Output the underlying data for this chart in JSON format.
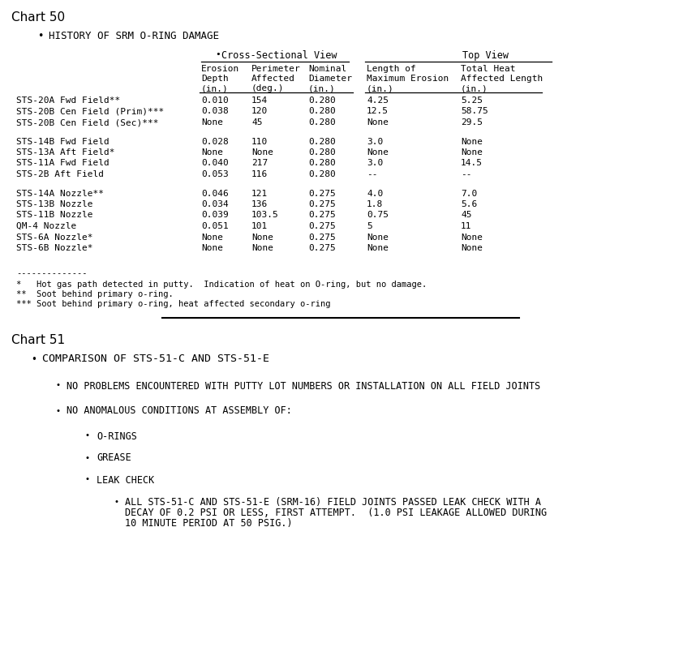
{
  "chart50_title": "Chart 50",
  "chart50_bullet": "HISTORY OF SRM O-RING DAMAGE",
  "cross_sect_label": "Cross-Sectional View",
  "top_view_label": "Top View",
  "group1": {
    "rows": [
      [
        "STS-20A Fwd Field**",
        "0.010",
        "154",
        "0.280",
        "4.25",
        "5.25"
      ],
      [
        "STS-20B Cen Field (Prim)***",
        "0.038",
        "120",
        "0.280",
        "12.5",
        "58.75"
      ],
      [
        "STS-20B Cen Field (Sec)***",
        "None",
        "45",
        "0.280",
        "None",
        "29.5"
      ]
    ]
  },
  "group2": {
    "rows": [
      [
        "STS-14B Fwd Field",
        "0.028",
        "110",
        "0.280",
        "3.0",
        "None"
      ],
      [
        "STS-13A Aft Field*",
        "None",
        "None",
        "0.280",
        "None",
        "None"
      ],
      [
        "STS-11A Fwd Field",
        "0.040",
        "217",
        "0.280",
        "3.0",
        "14.5"
      ],
      [
        "STS-2B Aft Field",
        "0.053",
        "116",
        "0.280",
        "--",
        "--"
      ]
    ]
  },
  "group3": {
    "rows": [
      [
        "STS-14A Nozzle**",
        "0.046",
        "121",
        "0.275",
        "4.0",
        "7.0"
      ],
      [
        "STS-13B Nozzle",
        "0.034",
        "136",
        "0.275",
        "1.8",
        "5.6"
      ],
      [
        "STS-11B Nozzle",
        "0.039",
        "103.5",
        "0.275",
        "0.75",
        "45"
      ],
      [
        "QM-4 Nozzle",
        "0.051",
        "101",
        "0.275",
        "5",
        "11"
      ],
      [
        "STS-6A Nozzle*",
        "None",
        "None",
        "0.275",
        "None",
        "None"
      ],
      [
        "STS-6B Nozzle*",
        "None",
        "None",
        "0.275",
        "None",
        "None"
      ]
    ]
  },
  "footnote_line": "--------------",
  "footnotes": [
    "*   Hot gas path detected in putty.  Indication of heat on O-ring, but no damage.",
    "**  Soot behind primary o-ring.",
    "*** Soot behind primary o-ring, heat affected secondary o-ring"
  ],
  "chart51_title": "Chart 51",
  "chart51_items": [
    {
      "level": 1,
      "text": "COMPARISON OF STS-51-C AND STS-51-E"
    },
    {
      "level": 2,
      "text": "NO PROBLEMS ENCOUNTERED WITH PUTTY LOT NUMBERS OR INSTALLATION ON ALL FIELD JOINTS"
    },
    {
      "level": 2,
      "text": "NO ANOMALOUS CONDITIONS AT ASSEMBLY OF:"
    },
    {
      "level": 3,
      "text": "O-RINGS"
    },
    {
      "level": 3,
      "text": "GREASE"
    },
    {
      "level": 3,
      "text": "LEAK CHECK"
    },
    {
      "level": 4,
      "text": "ALL STS-51-C AND STS-51-E (SRM-16) FIELD JOINTS PASSED LEAK CHECK WITH A\nDECAY OF 0.2 PSI OR LESS, FIRST ATTEMPT.  (1.0 PSI LEAKAGE ALLOWED DURING\n10 MINUTE PERIOD AT 50 PSIG.)"
    }
  ],
  "bg_color": "#ffffff",
  "text_color": "#000000"
}
